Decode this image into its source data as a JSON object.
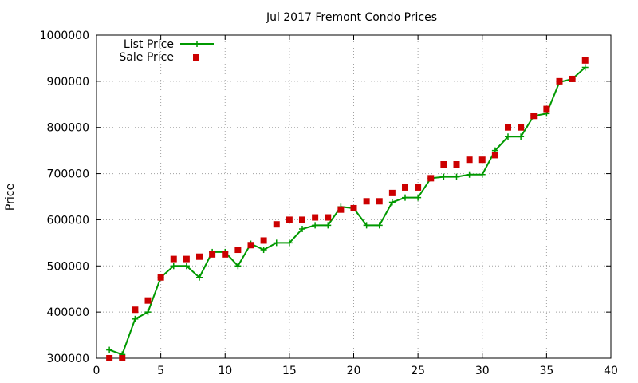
{
  "chart_data": {
    "type": "line",
    "title": "Jul 2017 Fremont Condo Prices",
    "xlabel": "",
    "ylabel": "Price",
    "xlim": [
      0,
      40
    ],
    "ylim": [
      300000,
      1000000
    ],
    "x_ticks": [
      "0",
      "5",
      "10",
      "15",
      "20",
      "25",
      "30",
      "35",
      "40"
    ],
    "y_ticks": [
      "300000",
      "400000",
      "500000",
      "600000",
      "700000",
      "800000",
      "900000",
      "1000000"
    ],
    "grid": true,
    "legend_position": "top-left",
    "series": [
      {
        "name": "List Price",
        "style": "line+cross",
        "color": "#009900",
        "x": [
          1,
          2,
          3,
          4,
          5,
          6,
          7,
          8,
          9,
          10,
          11,
          12,
          13,
          14,
          15,
          16,
          17,
          18,
          19,
          20,
          21,
          22,
          23,
          24,
          25,
          26,
          27,
          28,
          29,
          30,
          31,
          32,
          33,
          34,
          35,
          36,
          37,
          38
        ],
        "y": [
          318000,
          308000,
          385000,
          400000,
          475000,
          500000,
          500000,
          475000,
          530000,
          530000,
          500000,
          548000,
          535000,
          550000,
          550000,
          580000,
          588000,
          588000,
          628000,
          625000,
          588000,
          588000,
          638000,
          648000,
          648000,
          690000,
          693000,
          693000,
          698000,
          698000,
          750000,
          780000,
          780000,
          825000,
          830000,
          898000,
          905000,
          930000
        ]
      },
      {
        "name": "Sale Price",
        "style": "square",
        "color": "#cc0000",
        "x": [
          1,
          2,
          3,
          4,
          5,
          6,
          7,
          8,
          9,
          10,
          11,
          12,
          13,
          14,
          15,
          16,
          17,
          18,
          19,
          20,
          21,
          22,
          23,
          24,
          25,
          26,
          27,
          28,
          29,
          30,
          31,
          32,
          33,
          34,
          35,
          36,
          37,
          38
        ],
        "y": [
          300000,
          300000,
          405000,
          425000,
          475000,
          515000,
          515000,
          520000,
          525000,
          525000,
          535000,
          545000,
          555000,
          590000,
          600000,
          600000,
          605000,
          605000,
          622000,
          625000,
          640000,
          640000,
          658000,
          670000,
          670000,
          690000,
          720000,
          720000,
          730000,
          730000,
          740000,
          800000,
          800000,
          825000,
          840000,
          900000,
          905000,
          945000
        ]
      }
    ]
  }
}
